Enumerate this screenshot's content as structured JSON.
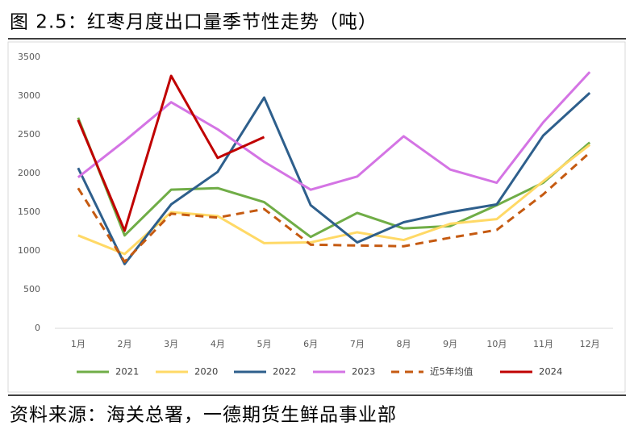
{
  "chart_data": {
    "type": "line",
    "title": "图 2.5：红枣月度出口量季节性走势（吨）",
    "source": "资料来源：海关总署，一德期货生鲜品事业部",
    "categories": [
      "1月",
      "2月",
      "3月",
      "4月",
      "5月",
      "6月",
      "7月",
      "8月",
      "9月",
      "10月",
      "11月",
      "12月"
    ],
    "series": [
      {
        "name": "2021",
        "color": "#70ad47",
        "values": [
          2720,
          1200,
          1790,
          1810,
          1630,
          1180,
          1490,
          1290,
          1320,
          1590,
          1880,
          2400
        ]
      },
      {
        "name": "2020",
        "color": "#ffd966",
        "values": [
          1200,
          960,
          1500,
          1450,
          1100,
          1110,
          1240,
          1140,
          1350,
          1410,
          1900,
          2370
        ]
      },
      {
        "name": "2022",
        "color": "#2e5f8c",
        "values": [
          2070,
          830,
          1600,
          2020,
          2980,
          1590,
          1110,
          1370,
          1500,
          1600,
          2490,
          3040
        ]
      },
      {
        "name": "2023",
        "color": "#d474e4",
        "values": [
          1950,
          2420,
          2920,
          2570,
          2150,
          1790,
          1960,
          2480,
          2050,
          1880,
          2660,
          3310
        ]
      },
      {
        "name": "近5年均值",
        "color": "#c55a11",
        "dashed": true,
        "values": [
          1810,
          860,
          1480,
          1430,
          1540,
          1080,
          1070,
          1060,
          1170,
          1270,
          1730,
          2270
        ]
      },
      {
        "name": "2024",
        "color": "#c00000",
        "values": [
          2690,
          1260,
          3260,
          2200,
          2470,
          null,
          null,
          null,
          null,
          null,
          null,
          null
        ]
      }
    ],
    "ylim": [
      0,
      3500
    ],
    "yticks": [
      0,
      500,
      1000,
      1500,
      2000,
      2500,
      3000,
      3500
    ],
    "grid": false,
    "legend": "bottom"
  }
}
